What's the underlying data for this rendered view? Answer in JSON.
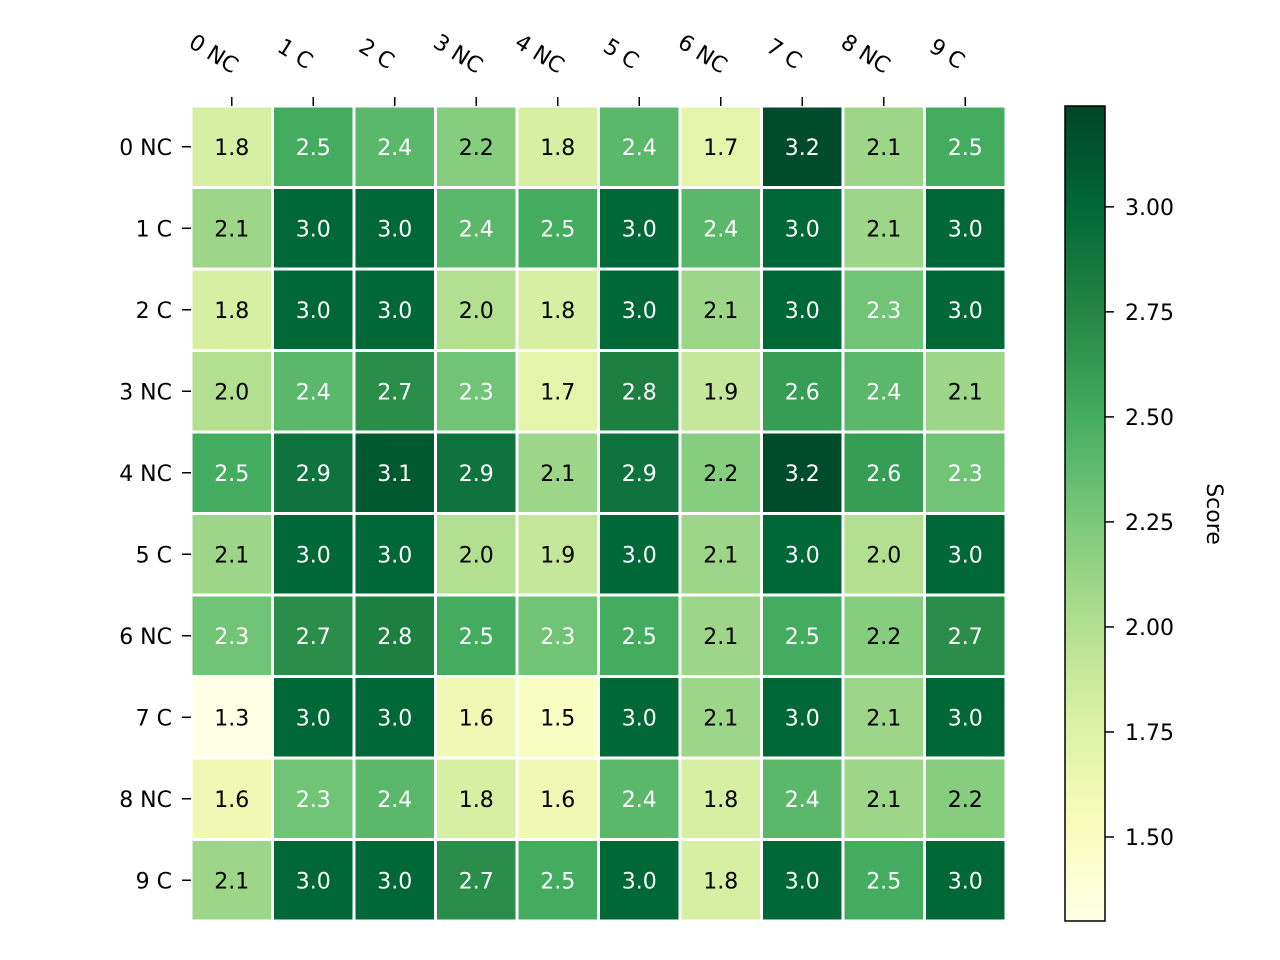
{
  "chart_data": {
    "type": "heatmap",
    "title": "",
    "xlabel": "",
    "ylabel": "",
    "x_categories": [
      "0 NC",
      "1 C",
      "2 C",
      "3 NC",
      "4 NC",
      "5 C",
      "6 NC",
      "7 C",
      "8 NC",
      "9 C"
    ],
    "y_categories": [
      "0 NC",
      "1 C",
      "2 C",
      "3 NC",
      "4 NC",
      "5 C",
      "6 NC",
      "7 C",
      "8 NC",
      "9 C"
    ],
    "values": [
      [
        1.8,
        2.5,
        2.4,
        2.2,
        1.8,
        2.4,
        1.7,
        3.2,
        2.1,
        2.5
      ],
      [
        2.1,
        3.0,
        3.0,
        2.4,
        2.5,
        3.0,
        2.4,
        3.0,
        2.1,
        3.0
      ],
      [
        1.8,
        3.0,
        3.0,
        2.0,
        1.8,
        3.0,
        2.1,
        3.0,
        2.3,
        3.0
      ],
      [
        2.0,
        2.4,
        2.7,
        2.3,
        1.7,
        2.8,
        1.9,
        2.6,
        2.4,
        2.1
      ],
      [
        2.5,
        2.9,
        3.1,
        2.9,
        2.1,
        2.9,
        2.2,
        3.2,
        2.6,
        2.3
      ],
      [
        2.1,
        3.0,
        3.0,
        2.0,
        1.9,
        3.0,
        2.1,
        3.0,
        2.0,
        3.0
      ],
      [
        2.3,
        2.7,
        2.8,
        2.5,
        2.3,
        2.5,
        2.1,
        2.5,
        2.2,
        2.7
      ],
      [
        1.3,
        3.0,
        3.0,
        1.6,
        1.5,
        3.0,
        2.1,
        3.0,
        2.1,
        3.0
      ],
      [
        1.6,
        2.3,
        2.4,
        1.8,
        1.6,
        2.4,
        1.8,
        2.4,
        2.1,
        2.2
      ],
      [
        2.1,
        3.0,
        3.0,
        2.7,
        2.5,
        3.0,
        1.8,
        3.0,
        2.5,
        3.0
      ]
    ],
    "value_format": "0.1f",
    "colormap": "YlGn",
    "colorbar": {
      "label": "Score",
      "range": [
        1.3,
        3.24
      ],
      "ticks": [
        1.5,
        1.75,
        2.0,
        2.25,
        2.5,
        2.75,
        3.0
      ],
      "tick_labels": [
        "1.50",
        "1.75",
        "2.00",
        "2.25",
        "2.50",
        "2.75",
        "3.00"
      ],
      "placement": "right"
    },
    "grid": false,
    "cell_separator_color": "#ffffff",
    "x_tick_position": "top",
    "colors": {
      "low": "#ffffe5",
      "high": "#004529",
      "dark_text": "#000000",
      "light_text": "#ffffff"
    }
  }
}
